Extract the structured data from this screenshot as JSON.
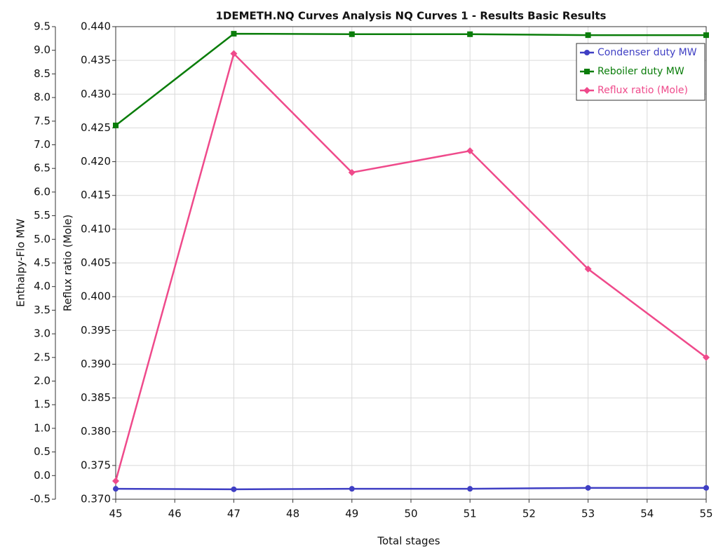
{
  "chart_data": {
    "type": "line",
    "title": "1DEMETH.NQ Curves Analysis NQ Curves 1 - Results Basic Results",
    "x_label": "Total stages",
    "y_label": "Enthalpy-Flo MW",
    "y2_label": "Reflux ratio (Mole)",
    "x": [
      45,
      47,
      49,
      51,
      53,
      55
    ],
    "xlim": [
      45,
      55
    ],
    "xticks": [
      45,
      46,
      47,
      48,
      49,
      50,
      51,
      52,
      53,
      54,
      55
    ],
    "ylim": [
      -0.5,
      9.5
    ],
    "yticks": [
      -0.5,
      {
        "value": 0,
        "label": "0.0"
      },
      0.5,
      {
        "value": 1,
        "label": "1.0"
      },
      1.5,
      {
        "value": 2,
        "label": "2.0"
      },
      2.5,
      {
        "value": 3,
        "label": "3.0"
      },
      3.5,
      {
        "value": 4,
        "label": "4.0"
      },
      4.5,
      {
        "value": 5,
        "label": "5.0"
      },
      5.5,
      {
        "value": 6,
        "label": "6.0"
      },
      6.5,
      {
        "value": 7,
        "label": "7.0"
      },
      7.5,
      {
        "value": 8,
        "label": "8.0"
      },
      8.5,
      {
        "value": 9,
        "label": "9.0"
      },
      9.5
    ],
    "y2lim": [
      0.37,
      0.44
    ],
    "y2ticks": [
      {
        "value": 0.37,
        "label": "0.370"
      },
      0.375,
      {
        "value": 0.38,
        "label": "0.380"
      },
      0.385,
      {
        "value": 0.39,
        "label": "0.390"
      },
      0.395,
      {
        "value": 0.4,
        "label": "0.400"
      },
      0.405,
      {
        "value": 0.41,
        "label": "0.410"
      },
      0.415,
      {
        "value": 0.42,
        "label": "0.420"
      },
      0.425,
      {
        "value": 0.43,
        "label": "0.430"
      },
      0.435,
      {
        "value": 0.44,
        "label": "0.440"
      }
    ],
    "grid": true,
    "legend": "upper right",
    "series": [
      {
        "name": "Condenser duty MW",
        "color": "#3f3fc4",
        "marker": "circle",
        "values": [
          -0.28,
          -0.29,
          -0.28,
          -0.28,
          -0.26,
          -0.26
        ]
      },
      {
        "name": "Reboiler duty MW",
        "color": "#0a7d0a",
        "marker": "square",
        "values": [
          7.41,
          9.35,
          9.34,
          9.34,
          9.32,
          9.32
        ]
      },
      {
        "name": "Reflux ratio (Mole)",
        "color": "#ef4a8b",
        "marker": "diamond",
        "axis": "y2",
        "values": [
          0.3727,
          0.436,
          0.4184,
          0.4216,
          0.4041,
          0.391
        ]
      }
    ]
  }
}
